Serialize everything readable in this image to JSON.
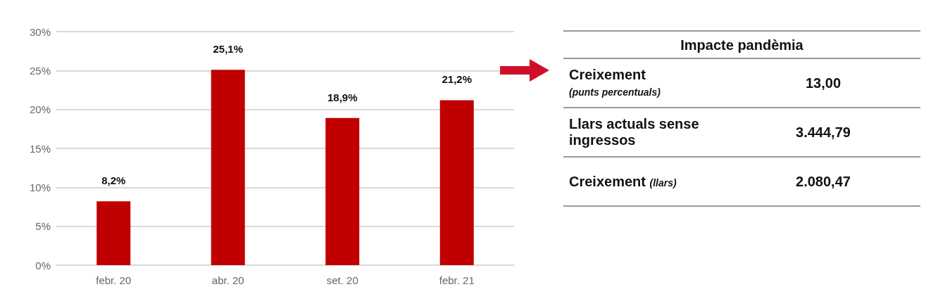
{
  "chart_data": [
    {
      "type": "bar",
      "categories": [
        "febr. 20",
        "abr. 20",
        "set. 20",
        "febr. 21"
      ],
      "values": [
        8.2,
        25.1,
        18.9,
        21.2
      ],
      "color": "#c00000",
      "value_labels": [
        "8,2%",
        "25,1%",
        "18,9%",
        "21,2%"
      ],
      "ylim": [
        0,
        30
      ],
      "yticks": [
        {
          "value": 0,
          "label": "0%"
        },
        {
          "value": 5,
          "label": "5%"
        },
        {
          "value": 10,
          "label": "10%"
        },
        {
          "value": 15,
          "label": "15%"
        },
        {
          "value": 20,
          "label": "20%"
        },
        {
          "value": 25,
          "label": "25%"
        },
        {
          "value": 30,
          "label": "30%"
        }
      ],
      "grid": "y"
    },
    {
      "type": "other",
      "title": "Impacte pandèmia",
      "categories": [
        "Creixement (punts percentuals)",
        "Llars actuals sense ingressos",
        "Creixement (llars)"
      ],
      "value_labels": [
        "13,00",
        "3.444,79",
        "2.080,47"
      ]
    }
  ]
}
